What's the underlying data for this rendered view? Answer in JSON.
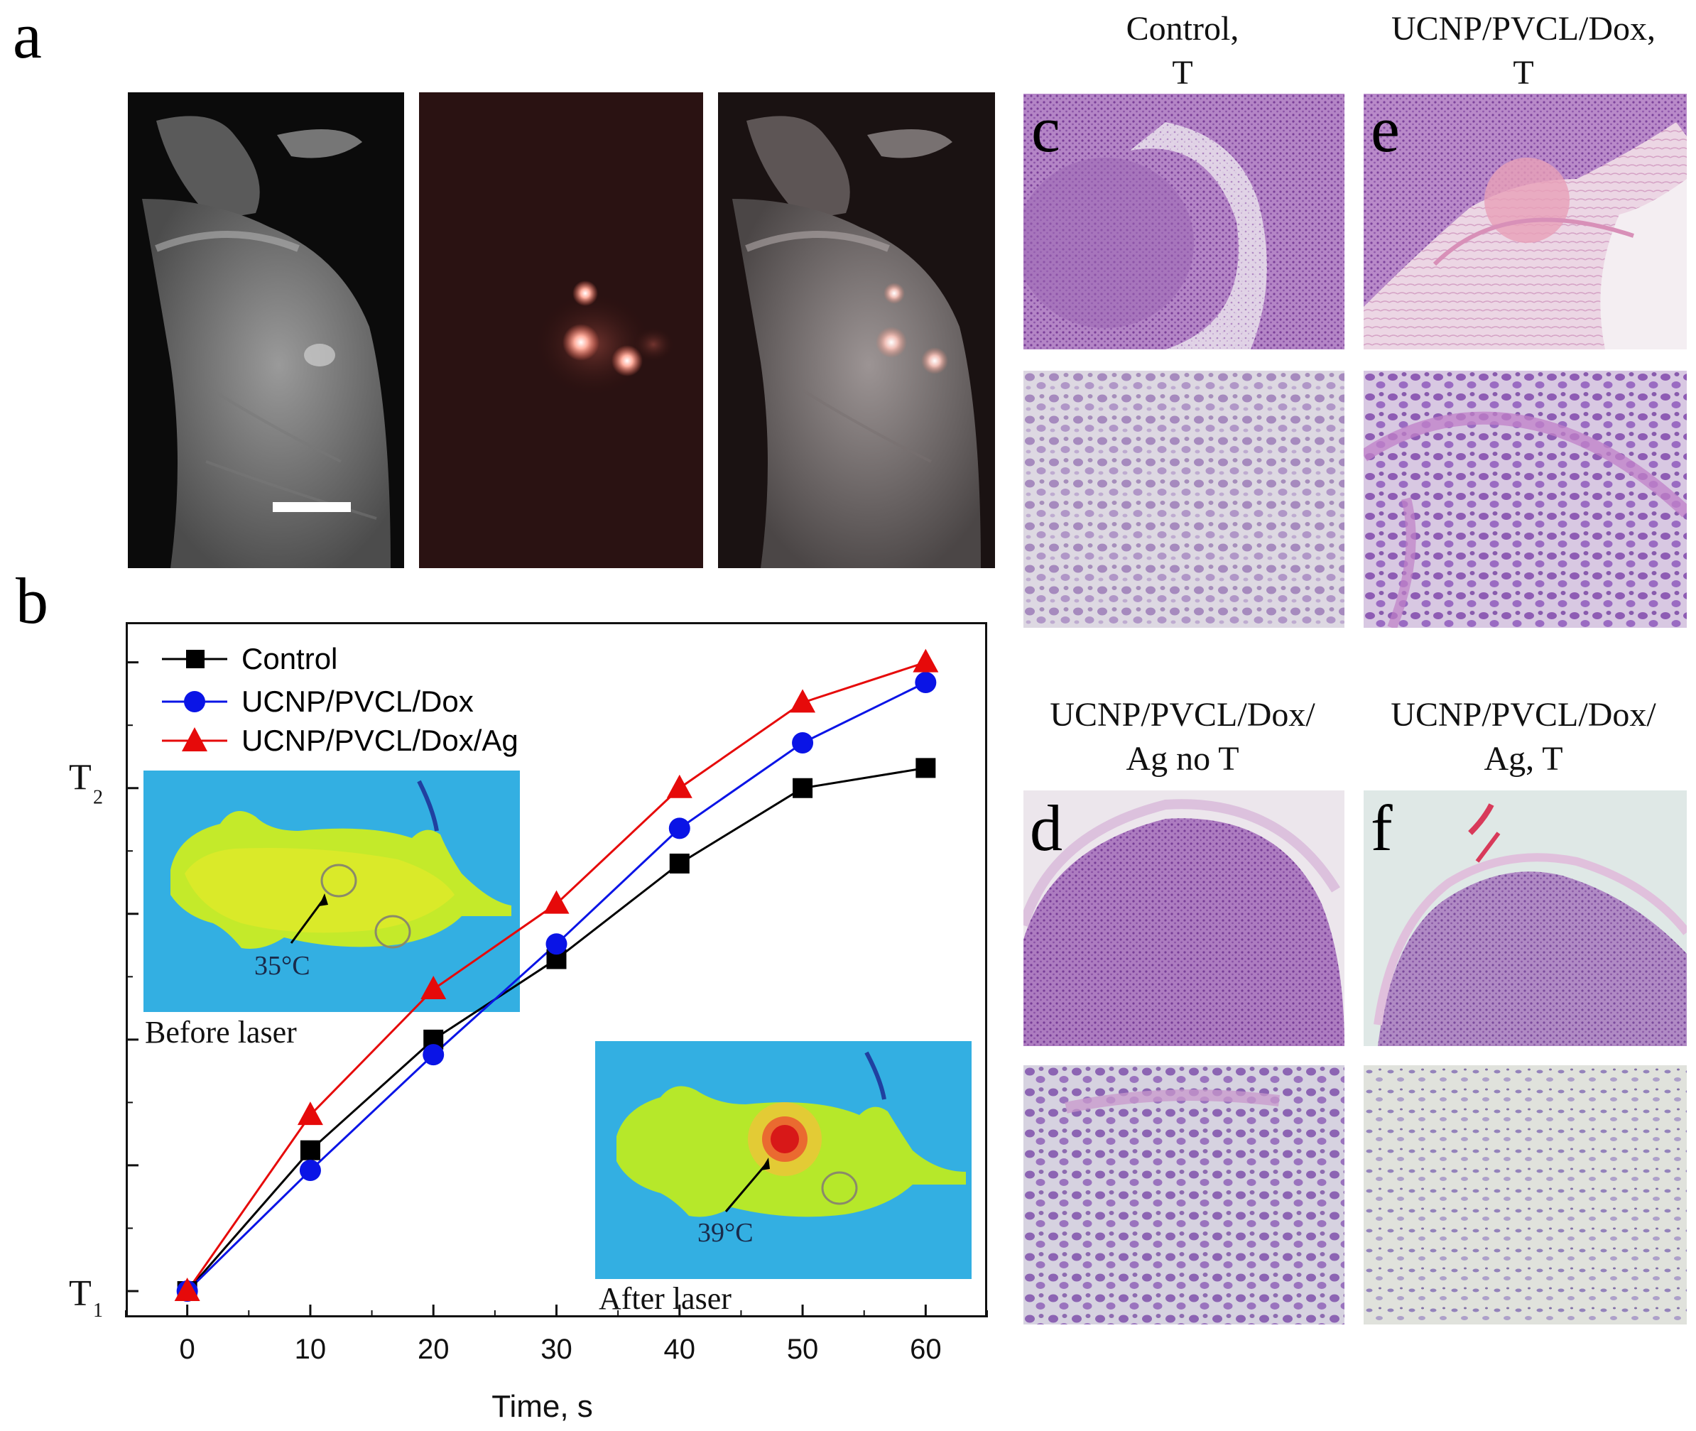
{
  "panels": {
    "a": "a",
    "b": "b",
    "c": "c",
    "d": "d",
    "e": "e",
    "f": "f"
  },
  "captions": {
    "c_line1": "Control,",
    "c_line2": "T",
    "e_line1": "UCNP/PVCL/Dox,",
    "e_line2": "T",
    "d_line1": "UCNP/PVCL/Dox/",
    "d_line2": "Ag no T",
    "f_line1": "UCNP/PVCL/Dox/",
    "f_line2": "Ag, T"
  },
  "insets": {
    "before_temp": "35°C",
    "before_caption": "Before laser",
    "after_temp": "39°C",
    "after_caption": "After laser"
  },
  "colors": {
    "control": "#000000",
    "dox": "#0a14e6",
    "ag": "#e60a0a",
    "thermal_bg": "#2fa7e8"
  },
  "chart_data": {
    "type": "line",
    "xlabel": "Time, s",
    "ylabel": "",
    "x": [
      0,
      10,
      20,
      30,
      40,
      50,
      60
    ],
    "xlim": [
      -5,
      65
    ],
    "x_ticks": [
      "0",
      "10",
      "20",
      "30",
      "40",
      "50",
      "60"
    ],
    "y_tick_labels": {
      "T1": "T",
      "T1_sub": "1",
      "T2": "T",
      "T2_sub": "2"
    },
    "ylim": [
      0,
      1.33
    ],
    "legend_position": "top-left",
    "series": [
      {
        "name": "Control",
        "marker": "square",
        "values": [
          0.0,
          0.28,
          0.5,
          0.66,
          0.85,
          1.0,
          1.04
        ]
      },
      {
        "name": "UCNP/PVCL/Dox",
        "marker": "circle",
        "values": [
          0.0,
          0.24,
          0.47,
          0.69,
          0.92,
          1.09,
          1.21
        ]
      },
      {
        "name": "UCNP/PVCL/Dox/Ag",
        "marker": "triangle",
        "values": [
          0.0,
          0.35,
          0.6,
          0.77,
          1.0,
          1.17,
          1.25
        ]
      }
    ]
  }
}
